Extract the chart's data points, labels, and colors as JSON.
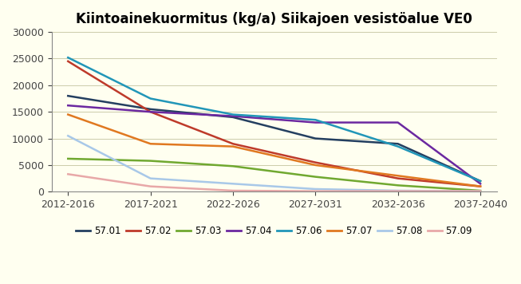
{
  "title": "Kiintoainekuormitus (kg/a) Siikajoen vesistöalue VE0",
  "x_labels": [
    "2012-2016",
    "2017-2021",
    "2022-2026",
    "2027-2031",
    "2032-2036",
    "2037-2040"
  ],
  "ylim": [
    0,
    30000
  ],
  "yticks": [
    0,
    5000,
    10000,
    15000,
    20000,
    25000,
    30000
  ],
  "background_color": "#FFFFF0",
  "series": [
    {
      "label": "57.01",
      "color": "#243F60",
      "values": [
        18000,
        15500,
        14000,
        10000,
        9000,
        2000
      ]
    },
    {
      "label": "57.02",
      "color": "#BE3A2A",
      "values": [
        24500,
        15000,
        9000,
        5500,
        2500,
        1000
      ]
    },
    {
      "label": "57.03",
      "color": "#70A830",
      "values": [
        6200,
        5800,
        4800,
        2800,
        1200,
        200
      ]
    },
    {
      "label": "57.04",
      "color": "#6B28A0",
      "values": [
        16200,
        15000,
        14200,
        13000,
        13000,
        1500
      ]
    },
    {
      "label": "57.06",
      "color": "#2196B8",
      "values": [
        25200,
        17500,
        14500,
        13500,
        8500,
        2000
      ]
    },
    {
      "label": "57.07",
      "color": "#E07820",
      "values": [
        14500,
        9000,
        8500,
        5000,
        3000,
        1000
      ]
    },
    {
      "label": "57.08",
      "color": "#A8C8E8",
      "values": [
        10500,
        2500,
        1500,
        500,
        200,
        100
      ]
    },
    {
      "label": "57.09",
      "color": "#E8A8A8",
      "values": [
        3300,
        1000,
        200,
        100,
        100,
        100
      ]
    }
  ]
}
